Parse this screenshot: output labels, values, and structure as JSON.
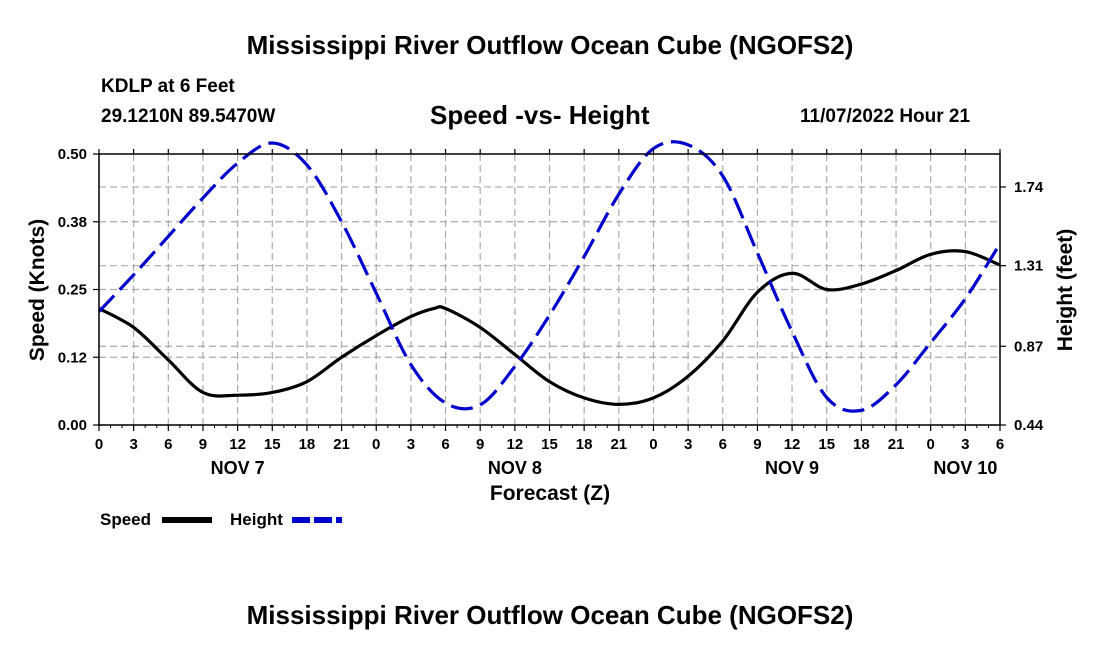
{
  "header": {
    "title": "Mississippi River Outflow Ocean Cube (NGOFS2)",
    "station": "KDLP at 6 Feet",
    "coords": "29.1210N  89.5470W",
    "subtitle": "Speed -vs- Height",
    "datetime": "11/07/2022 Hour 21"
  },
  "footer": {
    "title": "Mississippi River Outflow Ocean Cube (NGOFS2)"
  },
  "chart_data": {
    "type": "line",
    "xlabel": "Forecast (Z)",
    "ylabel_left": "Speed (Knots)",
    "ylabel_right": "Height (feet)",
    "x_unit": "hours from NOV 7 00Z",
    "xlim": [
      0,
      78
    ],
    "ylim_left": [
      0,
      0.5
    ],
    "ylim_right": [
      0.44,
      1.92
    ],
    "x_ticks": [
      0,
      3,
      6,
      9,
      12,
      15,
      18,
      21,
      24,
      27,
      30,
      33,
      36,
      39,
      42,
      45,
      48,
      51,
      54,
      57,
      60,
      63,
      66,
      69,
      72,
      75,
      78
    ],
    "x_tick_labels": [
      "0",
      "3",
      "6",
      "9",
      "12",
      "15",
      "18",
      "21",
      "0",
      "3",
      "6",
      "9",
      "12",
      "15",
      "18",
      "21",
      "0",
      "3",
      "6",
      "9",
      "12",
      "15",
      "18",
      "21",
      "0",
      "3",
      "6"
    ],
    "date_labels": [
      {
        "x": 12,
        "label": "NOV 7"
      },
      {
        "x": 36,
        "label": "NOV 8"
      },
      {
        "x": 60,
        "label": "NOV 9"
      },
      {
        "x": 75,
        "label": "NOV 10"
      }
    ],
    "y_left_ticks": [
      0,
      0.125,
      0.25,
      0.375,
      0.5
    ],
    "y_left_tick_labels": [
      "0.00",
      "0.12",
      "0.25",
      "0.38",
      "0.50"
    ],
    "y_right_ticks": [
      0.44,
      0.87,
      1.31,
      1.74
    ],
    "y_right_tick_labels": [
      "0.44",
      "0.87",
      "1.31",
      "1.74"
    ],
    "grid": true,
    "legend_position": "bottom-left",
    "series": [
      {
        "name": "Speed",
        "axis": "left",
        "color": "#000000",
        "style": "solid",
        "x": [
          0,
          3,
          6,
          9,
          12,
          15,
          18,
          21,
          24,
          27,
          29,
          30,
          33,
          36,
          39,
          42,
          45,
          48,
          51,
          54,
          57,
          60,
          63,
          66,
          69,
          72,
          75,
          78
        ],
        "values": [
          0.215,
          0.18,
          0.12,
          0.06,
          0.055,
          0.06,
          0.08,
          0.125,
          0.165,
          0.2,
          0.215,
          0.215,
          0.18,
          0.13,
          0.08,
          0.05,
          0.038,
          0.05,
          0.09,
          0.155,
          0.245,
          0.28,
          0.25,
          0.26,
          0.285,
          0.315,
          0.32,
          0.295
        ]
      },
      {
        "name": "Height",
        "axis": "right",
        "color": "#0000CC",
        "style": "dashed",
        "x": [
          0,
          3,
          6,
          9,
          12,
          15,
          18,
          21,
          24,
          27,
          30,
          33,
          36,
          39,
          42,
          45,
          48,
          51,
          54,
          57,
          60,
          63,
          66,
          69,
          72,
          75,
          78
        ],
        "values": [
          1.06,
          1.26,
          1.47,
          1.68,
          1.87,
          1.98,
          1.86,
          1.55,
          1.16,
          0.77,
          0.56,
          0.55,
          0.76,
          1.04,
          1.36,
          1.7,
          1.95,
          1.97,
          1.8,
          1.38,
          0.95,
          0.59,
          0.52,
          0.66,
          0.89,
          1.13,
          1.43
        ]
      }
    ]
  }
}
